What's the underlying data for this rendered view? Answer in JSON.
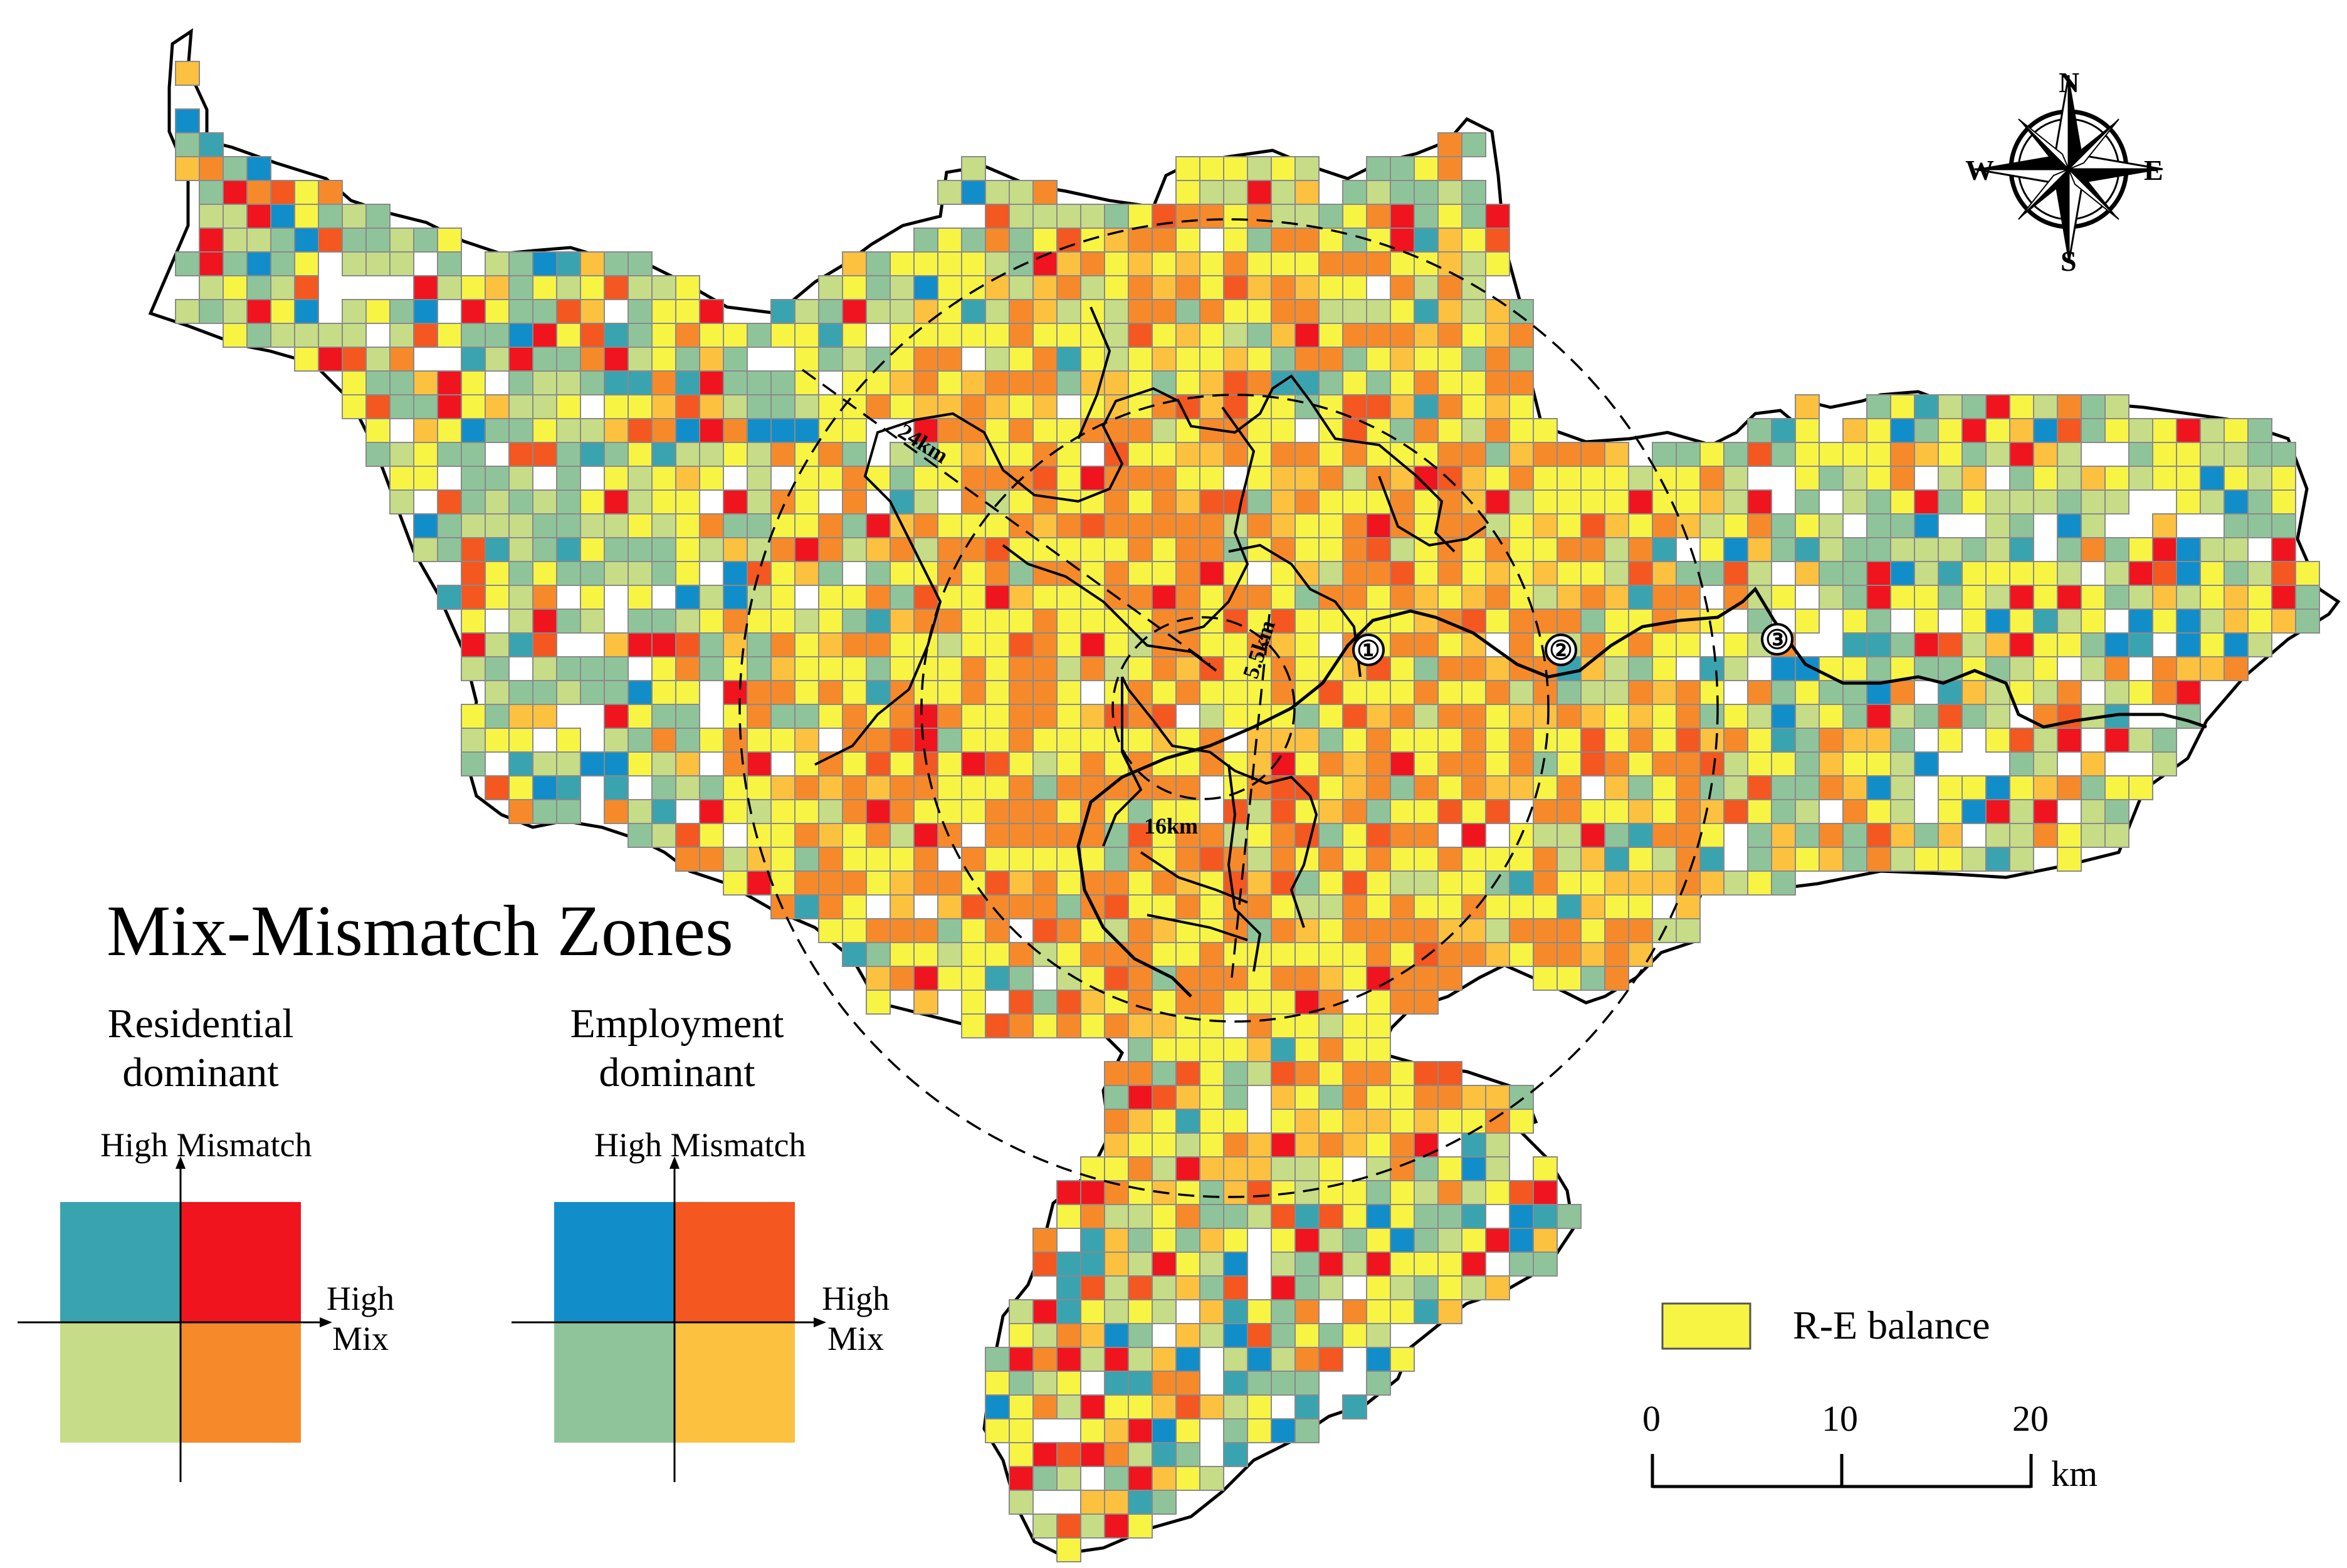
{
  "title": "Mix-Mismatch Zones",
  "legend": {
    "residential": {
      "heading_line1": "Residential",
      "heading_line2": "dominant",
      "y_axis": "High Mismatch",
      "x_axis_line1": "High",
      "x_axis_line2": "Mix",
      "colors": {
        "low_mix_high_mismatch": "#3aa3b0",
        "high_mix_high_mismatch": "#f0141e",
        "low_mix_low_mismatch": "#c6dc86",
        "high_mix_low_mismatch": "#f68a2a"
      }
    },
    "employment": {
      "heading_line1": "Employment",
      "heading_line2": "dominant",
      "y_axis": "High Mismatch",
      "x_axis_line1": "High",
      "x_axis_line2": "Mix",
      "colors": {
        "low_mix_high_mismatch": "#118ec9",
        "high_mix_high_mismatch": "#f4571f",
        "low_mix_low_mismatch": "#8fc49a",
        "high_mix_low_mismatch": "#fcc13e"
      }
    },
    "balance": {
      "label": "R-E balance",
      "color": "#f7f444"
    }
  },
  "compass": {
    "north": "N",
    "south": "S",
    "east": "E",
    "west": "W"
  },
  "rings": [
    {
      "label": "5.5km"
    },
    {
      "label": "16km"
    },
    {
      "label": "24km"
    }
  ],
  "river_markers": [
    "①",
    "②",
    "③"
  ],
  "scale_bar": {
    "ticks": [
      "0",
      "10",
      "20"
    ],
    "unit": "km"
  }
}
